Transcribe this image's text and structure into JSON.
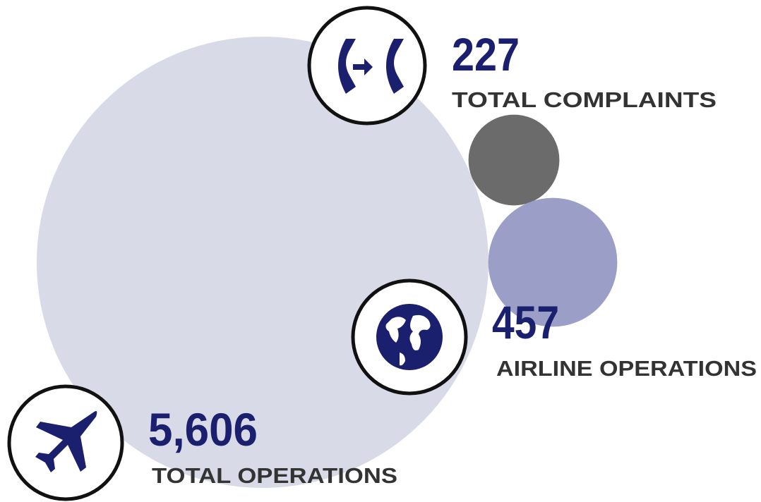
{
  "stats": [
    {
      "value": 5606,
      "value_label": "5,606",
      "label": "TOTAL OPERATIONS",
      "color": "#d8dae8"
    },
    {
      "value": 227,
      "value_label": "227",
      "label": "TOTAL COMPLAINTS",
      "color": "#6b6b6b"
    },
    {
      "value": 457,
      "value_label": "457",
      "label": "AIRLINE OPERATIONS",
      "color": "#9b9ec6"
    }
  ]
}
